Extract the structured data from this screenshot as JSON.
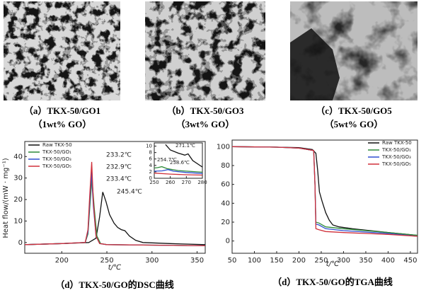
{
  "images": [
    {
      "caption": "（a）TKX-50/GO1",
      "subcaption": "（1wt% GO）"
    },
    {
      "caption": "（b）TKX-50/GO3",
      "subcaption": "（3wt% GO）"
    },
    {
      "caption": "（c）TKX-50/GO5",
      "subcaption": "（5wt% GO）"
    }
  ],
  "chart_data": [
    {
      "type": "line",
      "caption": "（d）TKX-50/GO的DSC曲线",
      "xlabel": "t/℃",
      "ylabel": "Heat flow/(mW · mg⁻¹)",
      "xlim": [
        159,
        359
      ],
      "ylim": [
        -5,
        47
      ],
      "xticks": [
        200,
        250,
        300,
        350
      ],
      "yticks": [
        0,
        10,
        20,
        30,
        40
      ],
      "series": [
        {
          "name": "Raw TKX-50",
          "color": "#111111",
          "x": [
            159,
            200,
            230,
            238,
            242,
            245.4,
            249,
            253,
            258,
            262,
            266,
            270,
            275,
            282,
            290,
            320,
            359
          ],
          "values": [
            -1,
            -0.5,
            0,
            2,
            12,
            23.5,
            19,
            13,
            9,
            7,
            6,
            5.5,
            3,
            1,
            0,
            -0.5,
            -1
          ]
        },
        {
          "name": "TKX-50/GO₁",
          "color": "#2e8b3a",
          "x": [
            159,
            200,
            226,
            229,
            231,
            233.4,
            236,
            239,
            243,
            250,
            300,
            359
          ],
          "values": [
            -1,
            -0.5,
            0,
            4,
            16,
            30,
            16,
            3,
            -0.5,
            -1,
            -1.2,
            -1.5
          ]
        },
        {
          "name": "TKX-50/GO₃",
          "color": "#2f4fd0",
          "x": [
            159,
            200,
            226,
            229,
            231,
            232.9,
            235,
            238,
            242,
            250,
            300,
            359
          ],
          "values": [
            -1,
            -0.5,
            0,
            5,
            19,
            33,
            17,
            3,
            -0.5,
            -1,
            -1.2,
            -1.5
          ]
        },
        {
          "name": "TKX-50/GO₅",
          "color": "#d0303a",
          "x": [
            159,
            200,
            226,
            229,
            231,
            233.2,
            235,
            238,
            242,
            250,
            300,
            359
          ],
          "values": [
            -1,
            -0.5,
            0,
            6,
            22,
            37.5,
            19,
            3,
            -0.5,
            -1,
            -1.2,
            -1.5
          ]
        }
      ],
      "annotations": [
        "233.2℃",
        "232.9℃",
        "233.4℃",
        "245.4℃"
      ],
      "inset": {
        "xlim": [
          250,
          280
        ],
        "ylim": [
          0,
          11
        ],
        "xticks": [
          250,
          260,
          270,
          280
        ],
        "yticks": [
          0,
          2,
          4,
          6,
          8,
          10
        ],
        "series": [
          {
            "color": "#111111",
            "x": [
              257,
              260,
              265,
              269,
              271.1,
              274,
              280
            ],
            "values": [
              10.5,
              8.8,
              7.8,
              7.2,
              7.6,
              5.5,
              3.5
            ]
          },
          {
            "color": "#2e8b3a",
            "x": [
              250,
              252,
              254.7,
              258,
              265,
              280
            ],
            "values": [
              3.2,
              3.3,
              3.6,
              3,
              2.4,
              1.9
            ]
          },
          {
            "color": "#2f4fd0",
            "x": [
              250,
              255,
              258.6,
              262,
              270,
              280
            ],
            "values": [
              2.2,
              2.3,
              2.7,
              2.2,
              1.8,
              1.5
            ]
          },
          {
            "color": "#d0303a",
            "x": [
              250,
              260,
              270,
              280
            ],
            "values": [
              1.6,
              1.3,
              1.1,
              1
            ]
          }
        ],
        "annotations": [
          "271.1℃",
          "254.7℃",
          "258.6℃"
        ]
      }
    },
    {
      "type": "line",
      "caption": "（d）TKX-50/GO的TGA曲线",
      "xlabel": "t/℃",
      "xlim": [
        50,
        466
      ],
      "ylim": [
        -13,
        107
      ],
      "xticks": [
        50,
        100,
        150,
        200,
        250,
        300,
        350,
        400,
        450
      ],
      "yticks": [
        0,
        20,
        40,
        60,
        80,
        100
      ],
      "series": [
        {
          "name": "Raw TKX-50",
          "color": "#111111",
          "x": [
            50,
            150,
            200,
            230,
            238,
            242,
            246,
            252,
            260,
            268,
            276,
            290,
            320,
            400,
            466
          ],
          "values": [
            100,
            99.5,
            99,
            97,
            93,
            75,
            52,
            42,
            30,
            22,
            17,
            15,
            13,
            9,
            6
          ]
        },
        {
          "name": "TKX-50/GO₁",
          "color": "#2e8b3a",
          "x": [
            50,
            150,
            200,
            233,
            236,
            238,
            245,
            260,
            300,
            400,
            466
          ],
          "values": [
            100,
            99.5,
            98.5,
            96,
            60,
            20,
            19,
            15,
            13,
            9,
            6
          ]
        },
        {
          "name": "TKX-50/GO₃",
          "color": "#2f4fd0",
          "x": [
            50,
            150,
            200,
            233,
            236,
            238,
            245,
            260,
            300,
            400,
            466
          ],
          "values": [
            100,
            99.5,
            98.5,
            96,
            60,
            18,
            17,
            13,
            11,
            8,
            5
          ]
        },
        {
          "name": "TKX-50/GO₅",
          "color": "#d0303a",
          "x": [
            50,
            150,
            200,
            233,
            236,
            238,
            245,
            260,
            300,
            400,
            466
          ],
          "values": [
            100,
            99.5,
            98.5,
            96,
            60,
            13,
            12,
            10,
            9,
            7,
            5
          ]
        }
      ]
    }
  ]
}
